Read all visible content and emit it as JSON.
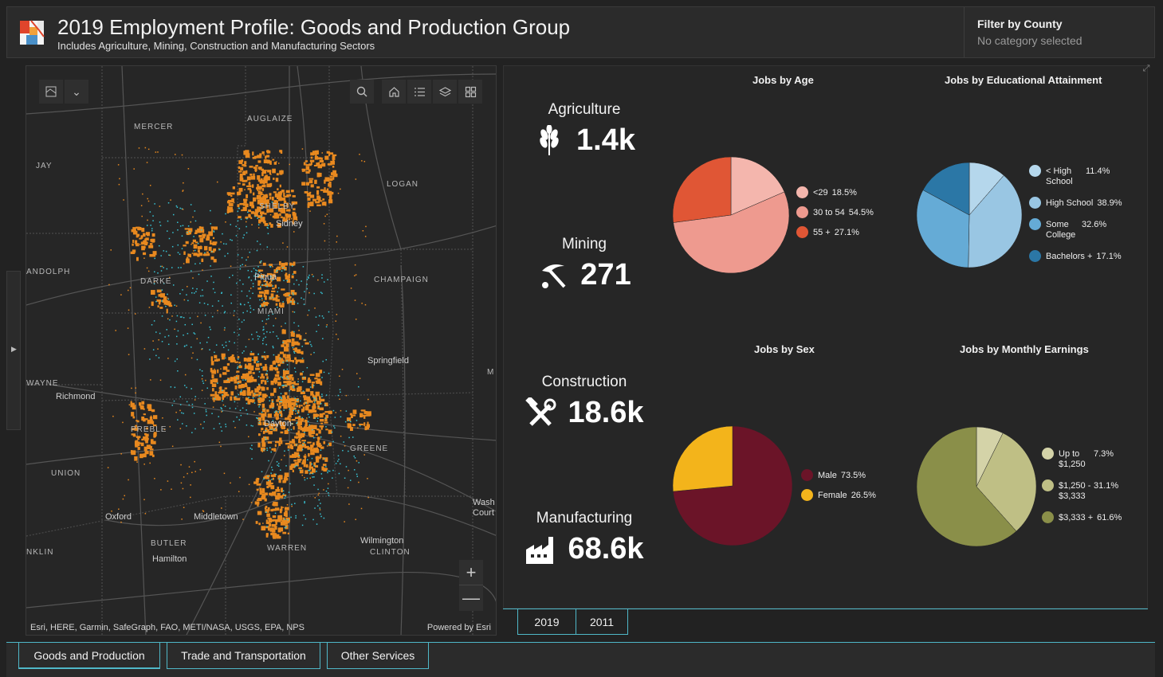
{
  "header": {
    "title": "2019 Employment Profile: Goods and Production Group",
    "subtitle": "Includes Agriculture, Mining, Construction and Manufacturing Sectors",
    "filter_label": "Filter by County",
    "filter_value": "No category selected"
  },
  "map": {
    "region_labels": [
      "MERCER",
      "AUGLAIZE",
      "JAY",
      "LOGAN",
      "SHELBY",
      "ANDOLPH",
      "DARKE",
      "CHAMPAIGN",
      "MIAMI",
      "WAYNE",
      "PREBLE",
      "GREENE",
      "UNION",
      "BUTLER",
      "WARREN",
      "CLINTON",
      "NKLIN",
      "M"
    ],
    "city_labels": [
      "Sidney",
      "Piqua",
      "Springfield",
      "Richmond",
      "Dayton",
      "Oxford",
      "Middletown",
      "Hamilton",
      "Wilmington",
      "Wash Court"
    ],
    "attribution": "Esri, HERE, Garmin, SafeGraph, FAO, METI/NASA, USGS, EPA, NPS",
    "powered_by": "Powered by Esri",
    "zoom_in": "+",
    "zoom_out": "—",
    "tool_icons": [
      "search-icon",
      "home-icon",
      "list-icon",
      "layers-icon",
      "grid-icon"
    ],
    "colors": {
      "orange": "#e8891f",
      "cyan": "#38c5d6",
      "roads": "#555555"
    }
  },
  "kpis": [
    {
      "title": "Agriculture",
      "value": "1.4k",
      "icon": "wheat-icon"
    },
    {
      "title": "Mining",
      "value": "271",
      "icon": "pickaxe-icon"
    },
    {
      "title": "Construction",
      "value": "18.6k",
      "icon": "hammer-wrench-icon"
    },
    {
      "title": "Manufacturing",
      "value": "68.6k",
      "icon": "factory-icon"
    }
  ],
  "charts": {
    "age": {
      "title": "Jobs by Age",
      "slices": [
        {
          "label": "<29",
          "pct": "18.5%",
          "value": 18.5,
          "color": "#f4b6ad"
        },
        {
          "label": "30 to 54",
          "pct": "54.5%",
          "value": 54.5,
          "color": "#ee9a8f"
        },
        {
          "label": "55 +",
          "pct": "27.1%",
          "value": 27.1,
          "color": "#e05635"
        }
      ]
    },
    "education": {
      "title": "Jobs by Educational Attainment",
      "slices": [
        {
          "label": "< High School",
          "pct": "11.4%",
          "value": 11.4,
          "color": "#b5d7ec"
        },
        {
          "label": "High School",
          "pct": "38.9%",
          "value": 38.9,
          "color": "#99c6e3"
        },
        {
          "label": "Some College",
          "pct": "32.6%",
          "value": 32.6,
          "color": "#65abd6"
        },
        {
          "label": "Bachelors +",
          "pct": "17.1%",
          "value": 17.1,
          "color": "#2b77a6"
        }
      ]
    },
    "sex": {
      "title": "Jobs by Sex",
      "slices": [
        {
          "label": "Male",
          "pct": "73.5%",
          "value": 73.5,
          "color": "#6b1428"
        },
        {
          "label": "Female",
          "pct": "26.5%",
          "value": 26.5,
          "color": "#f3b41b"
        }
      ]
    },
    "earnings": {
      "title": "Jobs by Monthly Earnings",
      "slices": [
        {
          "label": "Up to $1,250",
          "pct": "7.3%",
          "value": 7.3,
          "color": "#d4d3a8"
        },
        {
          "label": "$1,250 - $3,333",
          "pct": "31.1%",
          "value": 31.1,
          "color": "#bfbf85"
        },
        {
          "label": "$3,333 +",
          "pct": "61.6%",
          "value": 61.6,
          "color": "#8a8f49"
        }
      ]
    }
  },
  "year_tabs": [
    "2019",
    "2011"
  ],
  "bottom_tabs": [
    "Goods and Production",
    "Trade and Transportation",
    "Other Services"
  ]
}
